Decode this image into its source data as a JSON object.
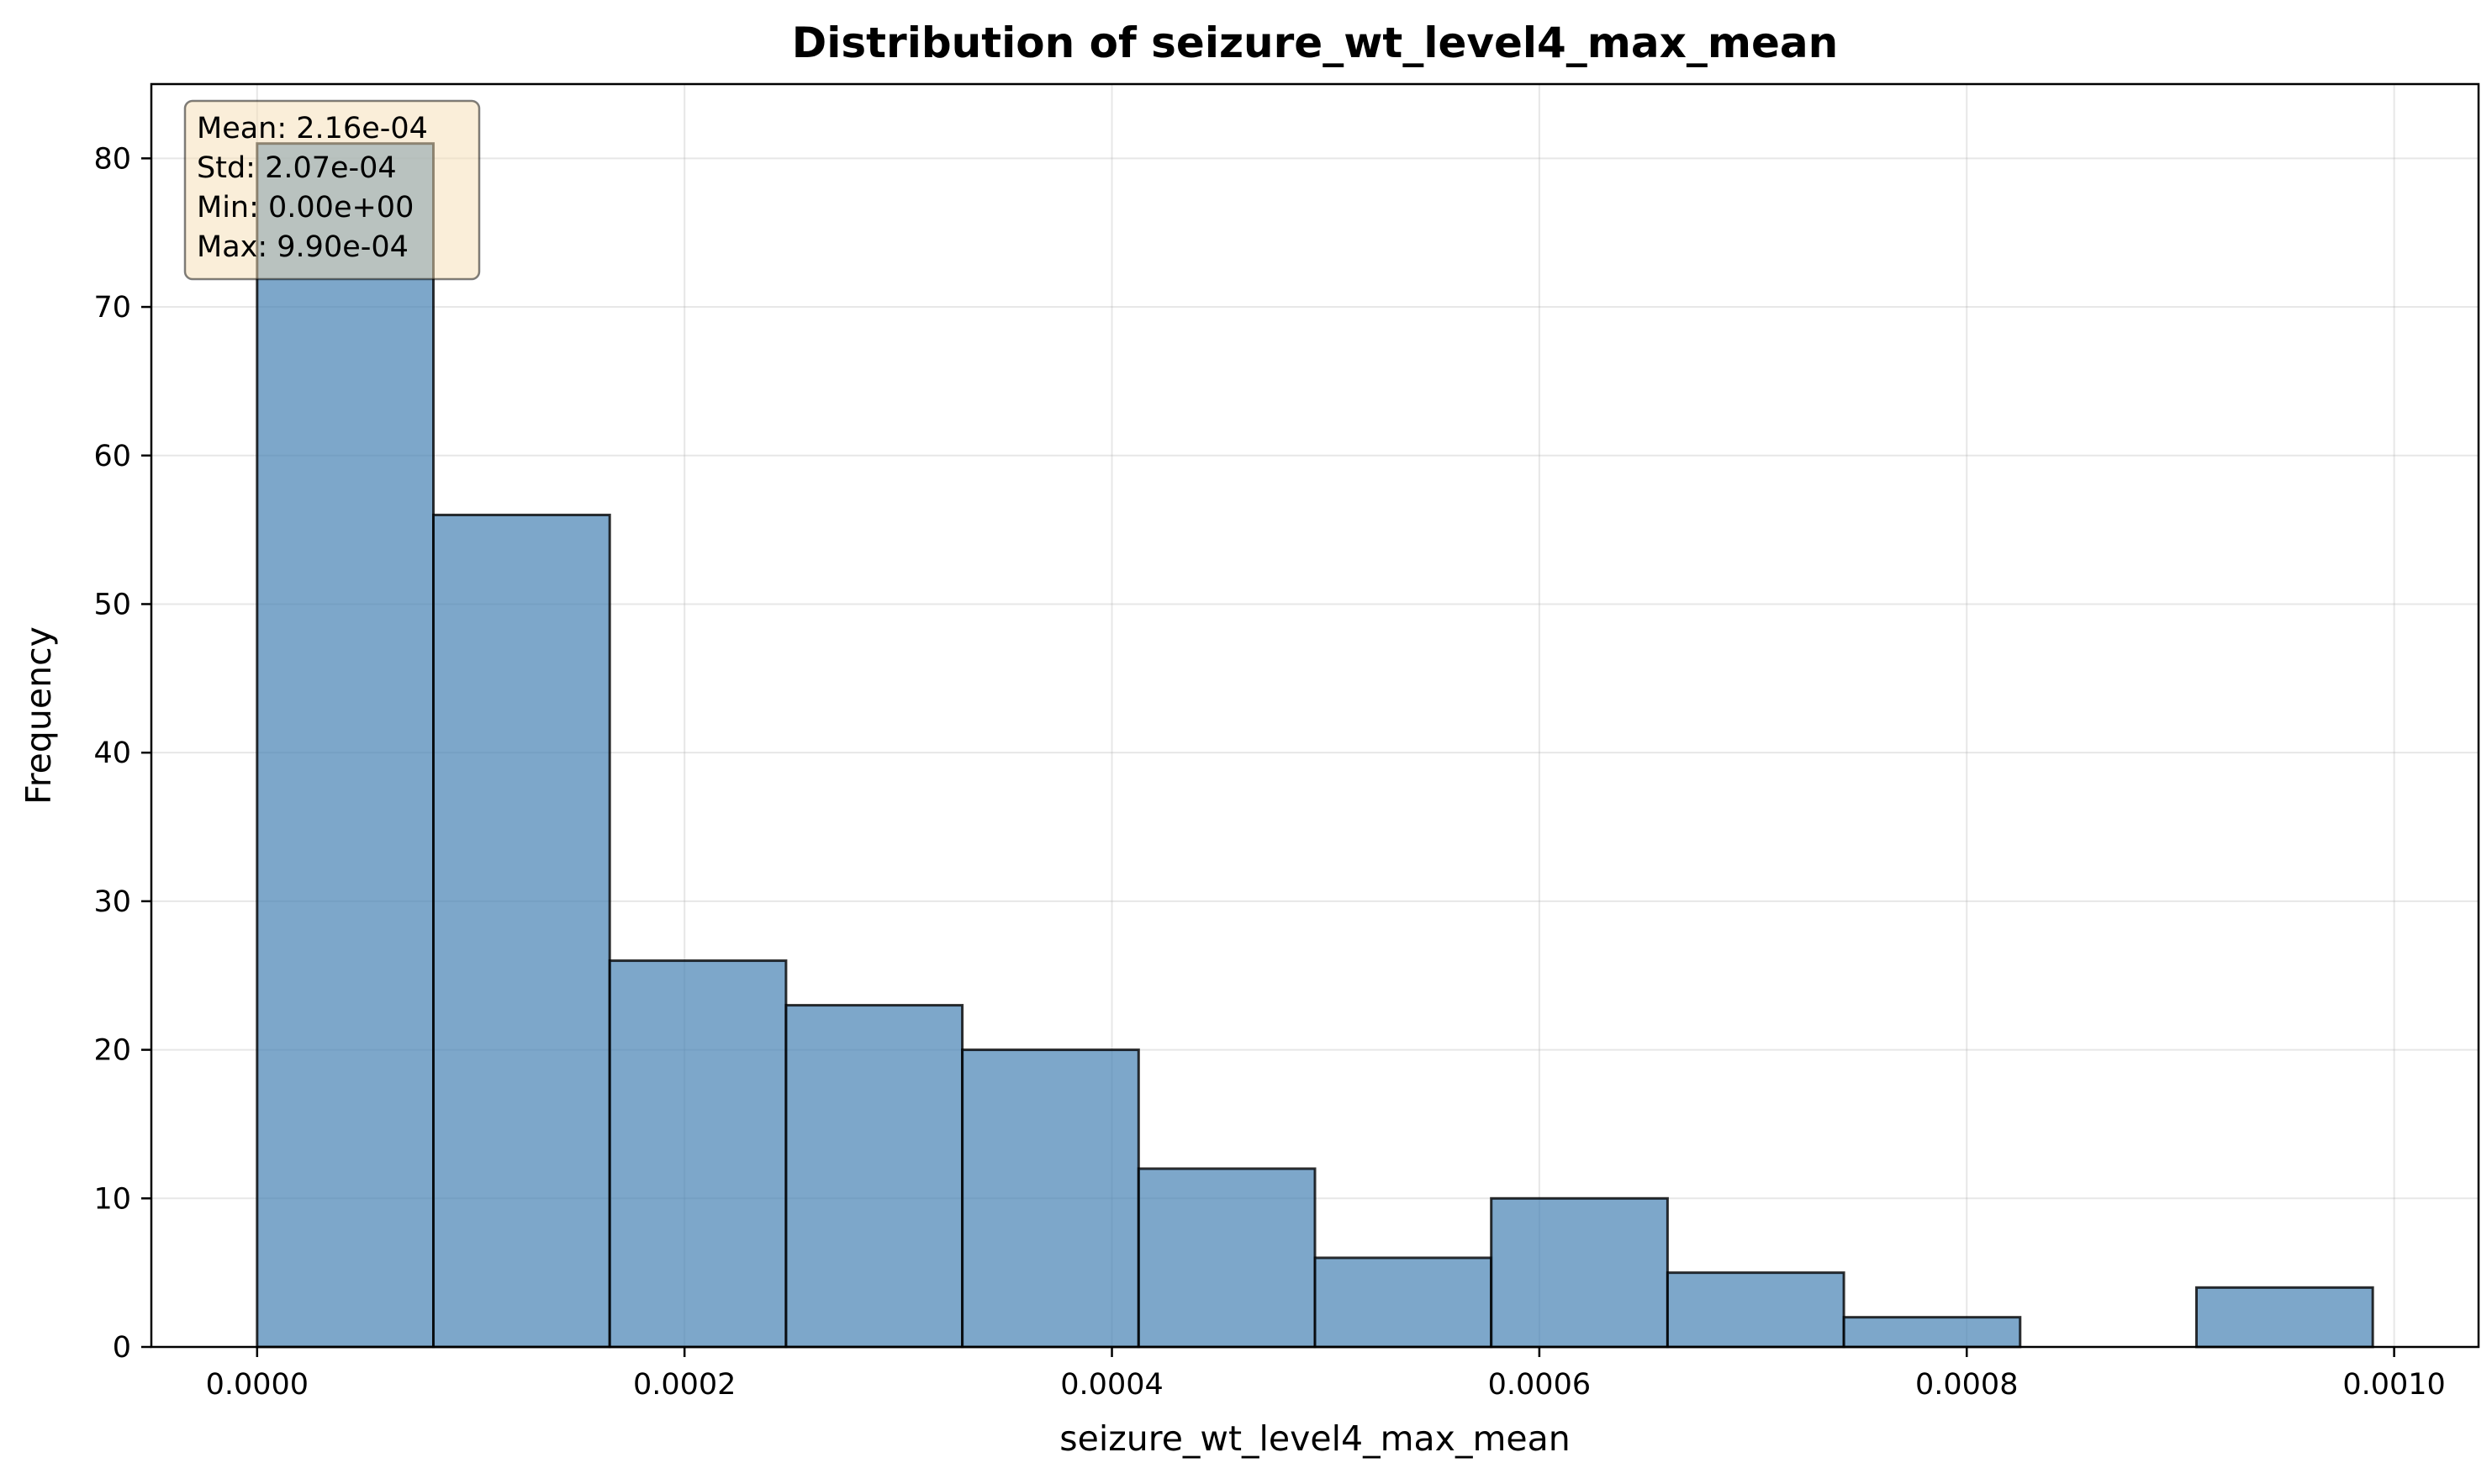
{
  "chart_data": {
    "type": "bar",
    "title": "Distribution of seizure_wt_level4_max_mean",
    "xlabel": "seizure_wt_level4_max_mean",
    "ylabel": "Frequency",
    "bin_edges": [
      0.0,
      8.25e-05,
      0.000165,
      0.0002475,
      0.00033,
      0.0004125,
      0.000495,
      0.0005775,
      0.00066,
      0.0007425,
      0.000825,
      0.0009075,
      0.00099
    ],
    "values": [
      81,
      56,
      26,
      23,
      20,
      12,
      6,
      10,
      5,
      2,
      0,
      4
    ],
    "xlim": [
      -4.95e-05,
      0.0010395
    ],
    "ylim": [
      0,
      85
    ],
    "x_ticks": [
      0.0,
      0.0002,
      0.0004,
      0.0006,
      0.0008,
      0.001
    ],
    "x_tick_labels": [
      "0.0000",
      "0.0002",
      "0.0004",
      "0.0006",
      "0.0008",
      "0.0010"
    ],
    "y_ticks": [
      0,
      10,
      20,
      30,
      40,
      50,
      60,
      70,
      80
    ],
    "y_tick_labels": [
      "0",
      "10",
      "20",
      "30",
      "40",
      "50",
      "60",
      "70",
      "80"
    ],
    "grid": true,
    "bar_color": "#4682b4",
    "bar_edge_color": "#000000",
    "stats_box": {
      "lines": [
        "Mean: 2.16e-04",
        "Std: 2.07e-04",
        "Min: 0.00e+00",
        "Max: 9.90e-04"
      ],
      "background": "#f5deb3",
      "placement": "top-left"
    }
  }
}
